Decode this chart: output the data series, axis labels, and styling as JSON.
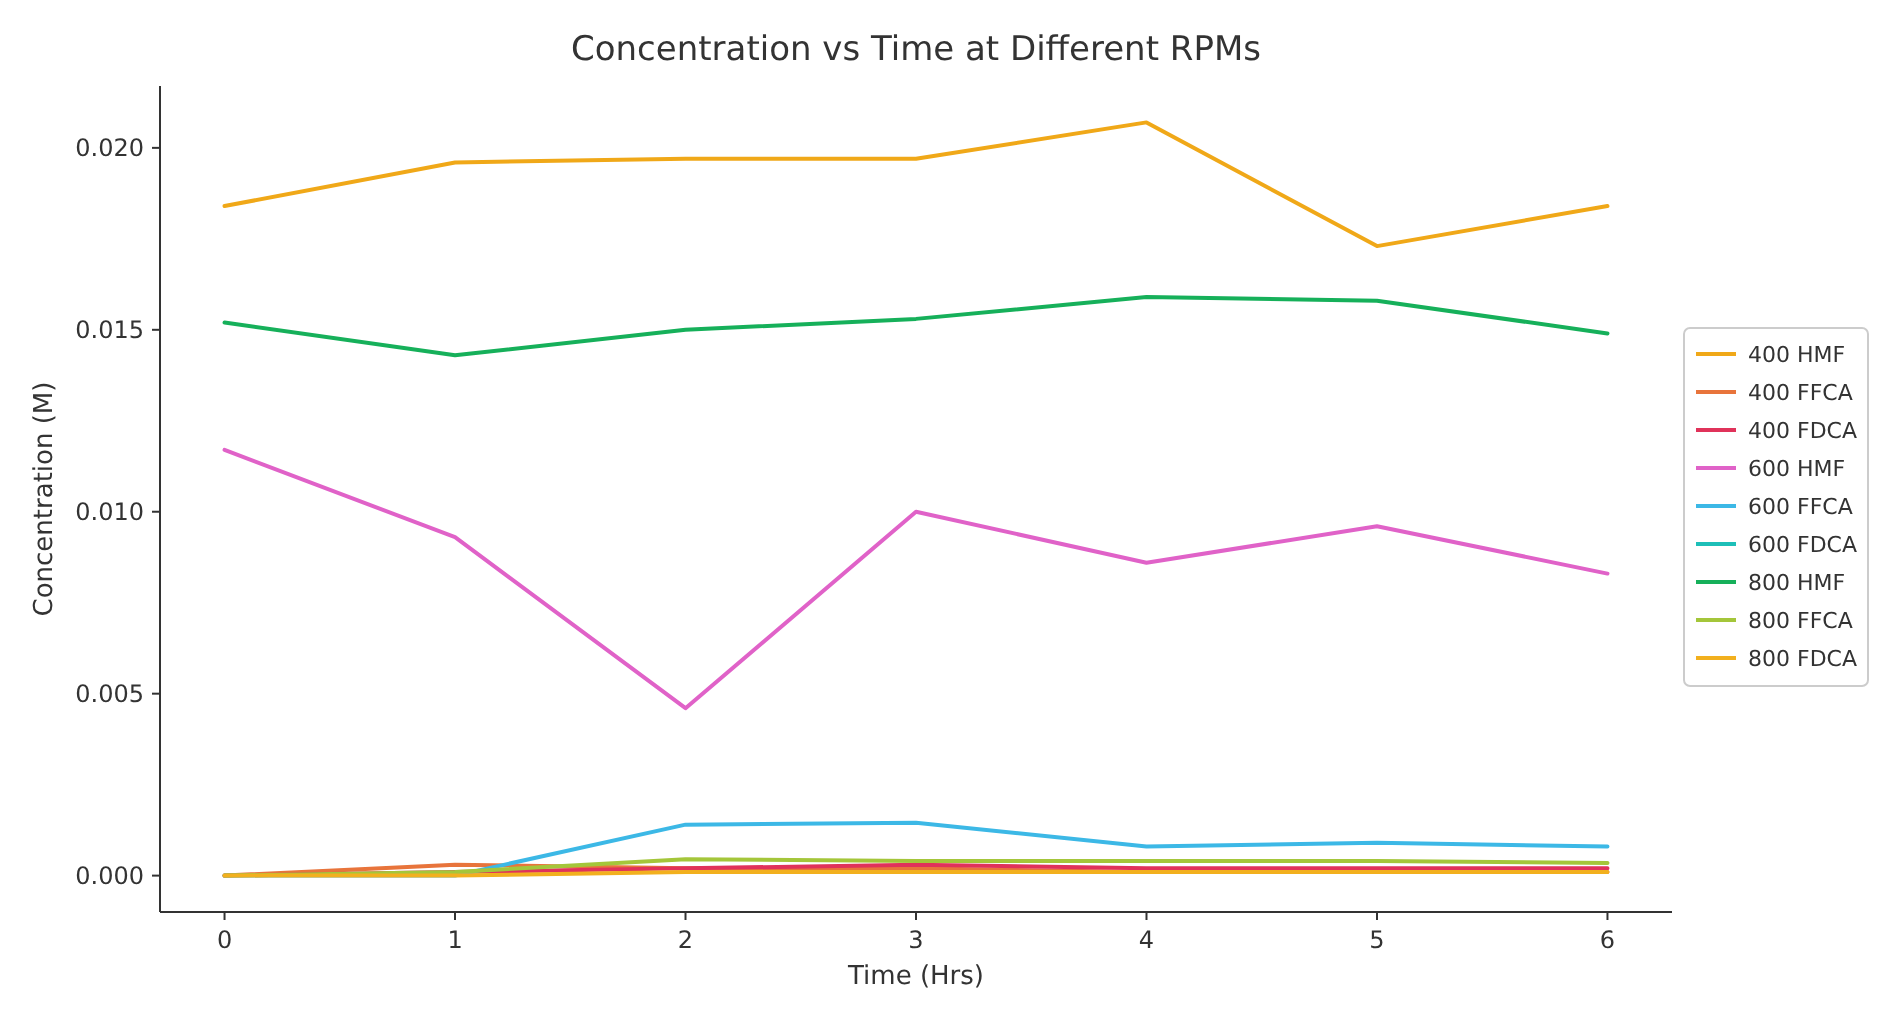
{
  "chart_data": {
    "type": "line",
    "title": "Concentration vs Time at Different RPMs",
    "xlabel": "Time (Hrs)",
    "ylabel": "Concentration (M)",
    "x": [
      0,
      1,
      2,
      3,
      4,
      5,
      6
    ],
    "xlim": [
      -0.28,
      6.28
    ],
    "xticks": [
      0,
      1,
      2,
      3,
      4,
      5,
      6
    ],
    "ylim": [
      -0.001,
      0.0217
    ],
    "yticks": [
      {
        "value": 0,
        "label": "0.000"
      },
      {
        "value": 0.005,
        "label": "0.005"
      },
      {
        "value": 0.01,
        "label": "0.010"
      },
      {
        "value": 0.015,
        "label": "0.015"
      },
      {
        "value": 0.02,
        "label": "0.020"
      }
    ],
    "grid": false,
    "legend": "right",
    "marker": "none",
    "line_style": "solid",
    "series": [
      {
        "name": "400 HMF",
        "color": "#f0a818",
        "values": [
          0.0184,
          0.0196,
          0.0197,
          0.0197,
          0.0207,
          0.0173,
          0.0184
        ]
      },
      {
        "name": "400 FFCA",
        "color": "#e8743b",
        "values": [
          0,
          0.0003,
          0.0002,
          0.0002,
          0.0001,
          0.0001,
          0.0001
        ]
      },
      {
        "name": "400 FDCA",
        "color": "#e0325a",
        "values": [
          0,
          0.0001,
          0.0002,
          0.0003,
          0.0002,
          0.0002,
          0.0002
        ]
      },
      {
        "name": "600 HMF",
        "color": "#e062c8",
        "values": [
          0.0117,
          0.0093,
          0.0046,
          0.01,
          0.0086,
          0.0096,
          0.0083
        ]
      },
      {
        "name": "600 FFCA",
        "color": "#3cb8e6",
        "values": [
          0,
          0,
          0.0014,
          0.00145,
          0.0008,
          0.0009,
          0.0008
        ]
      },
      {
        "name": "600 FDCA",
        "color": "#1dbfb8",
        "values": [
          null,
          null,
          null,
          null,
          null,
          null,
          null
        ]
      },
      {
        "name": "800 HMF",
        "color": "#16b05a",
        "values": [
          0.0152,
          0.0143,
          0.015,
          0.0153,
          0.0159,
          0.0158,
          0.0149
        ]
      },
      {
        "name": "800 FFCA",
        "color": "#a4c63a",
        "values": [
          0,
          0.0001,
          0.00045,
          0.0004,
          0.0004,
          0.0004,
          0.00035
        ]
      },
      {
        "name": "800 FDCA",
        "color": "#f2b01e",
        "values": [
          0,
          0,
          0.0001,
          0.0001,
          0.0001,
          0.0001,
          0.0001
        ]
      }
    ]
  }
}
